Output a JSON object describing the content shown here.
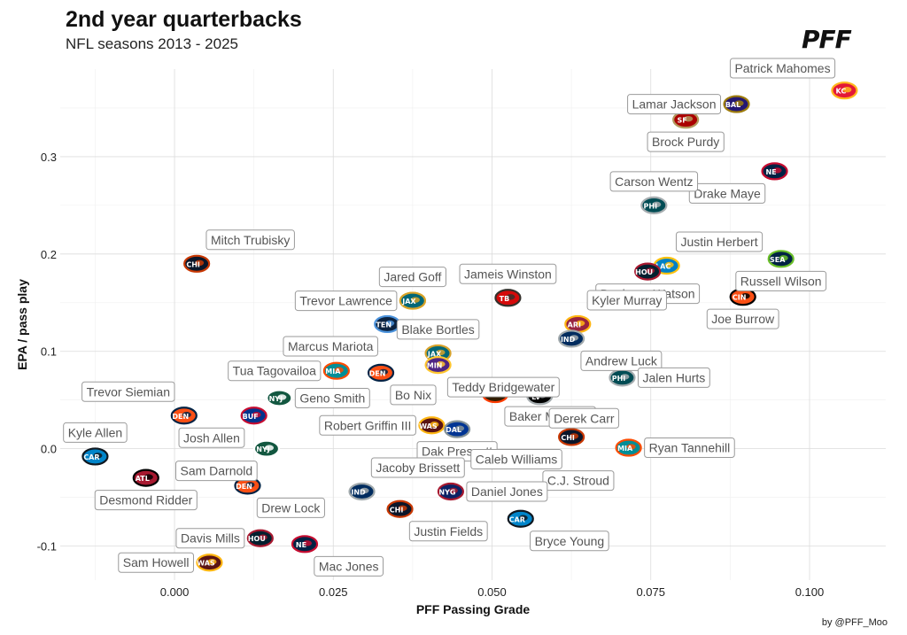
{
  "header": {
    "title": "2nd year quarterbacks",
    "subtitle": "NFL seasons 2013 - 2025",
    "logo_text": "PFF"
  },
  "footer": {
    "credit": "by @PFF_Moo"
  },
  "chart_data": {
    "type": "scatter",
    "title": "2nd year quarterbacks",
    "subtitle": "NFL seasons 2013 - 2025",
    "xlabel": "PFF Passing Grade",
    "ylabel": "EPA / pass play",
    "xlim": [
      -0.018,
      0.112
    ],
    "ylim": [
      -0.135,
      0.39
    ],
    "x_ticks": [
      0.0,
      0.025,
      0.05,
      0.075,
      0.1
    ],
    "x_tick_labels": [
      "0.000",
      "0.025",
      "0.050",
      "0.075",
      "0.100"
    ],
    "y_ticks": [
      -0.1,
      0.0,
      0.1,
      0.2,
      0.3
    ],
    "y_tick_labels": [
      "-0.1",
      "0.0",
      "0.1",
      "0.2",
      "0.3"
    ],
    "grid": true,
    "points": [
      {
        "label": "Patrick Mahomes",
        "x": 0.1055,
        "y": 0.368,
        "team": "KC",
        "color": "#E31837",
        "color2": "#FFB81C",
        "label_side": "left-up"
      },
      {
        "label": "Lamar Jackson",
        "x": 0.0885,
        "y": 0.354,
        "team": "BAL",
        "color": "#241773",
        "color2": "#9E7C0C",
        "label_side": "left"
      },
      {
        "label": "Brock Purdy",
        "x": 0.0805,
        "y": 0.338,
        "team": "SF",
        "color": "#AA0000",
        "color2": "#B3995D",
        "label_side": "below"
      },
      {
        "label": "Drake Maye",
        "x": 0.0945,
        "y": 0.285,
        "team": "NE",
        "color": "#002244",
        "color2": "#C60C30",
        "label_side": "below-left"
      },
      {
        "label": "Carson Wentz",
        "x": 0.0755,
        "y": 0.25,
        "team": "PHI",
        "color": "#004C54",
        "color2": "#A5ACAF",
        "label_side": "above"
      },
      {
        "label": "Russell Wilson",
        "x": 0.0955,
        "y": 0.195,
        "team": "SEA",
        "color": "#002244",
        "color2": "#69BE28",
        "label_side": "below"
      },
      {
        "label": "Justin Herbert",
        "x": 0.0775,
        "y": 0.188,
        "team": "LAC",
        "color": "#0080C6",
        "color2": "#FFC20E",
        "label_side": "above-right"
      },
      {
        "label": "Deshaun Watson",
        "x": 0.0745,
        "y": 0.182,
        "team": "HOU",
        "color": "#03202F",
        "color2": "#A71930",
        "label_side": "below"
      },
      {
        "label": "Joe Burrow",
        "x": 0.0895,
        "y": 0.156,
        "team": "CIN",
        "color": "#FB4F14",
        "color2": "#000000",
        "label_side": "below"
      },
      {
        "label": "Mitch Trubisky",
        "x": 0.0035,
        "y": 0.19,
        "team": "CHI",
        "color": "#0B162A",
        "color2": "#C83803",
        "label_side": "above-right"
      },
      {
        "label": "Jameis Winston",
        "x": 0.0525,
        "y": 0.155,
        "team": "TB",
        "color": "#D50A0A",
        "color2": "#34302B",
        "label_side": "above"
      },
      {
        "label": "Jared Goff",
        "x": 0.0375,
        "y": 0.152,
        "team": "LAR",
        "color": "#003594",
        "color2": "#FFD100",
        "label_side": "above"
      },
      {
        "label": "Trevor Lawrence",
        "x": 0.0375,
        "y": 0.152,
        "team": "JAX",
        "color": "#006778",
        "color2": "#D7A22A",
        "label_side": "left"
      },
      {
        "label": "Kyler Murray",
        "x": 0.0635,
        "y": 0.128,
        "team": "ARI",
        "color": "#97233F",
        "color2": "#FFB612",
        "label_side": "above-right"
      },
      {
        "label": "Marcus Mariota",
        "x": 0.0335,
        "y": 0.128,
        "team": "TEN",
        "color": "#0C2340",
        "color2": "#4B92DB",
        "label_side": "below-left"
      },
      {
        "label": "Andrew Luck",
        "x": 0.0625,
        "y": 0.113,
        "team": "IND",
        "color": "#002C5F",
        "color2": "#A2AAAD",
        "label_side": "below-right"
      },
      {
        "label": "Blake Bortles",
        "x": 0.0415,
        "y": 0.098,
        "team": "JAX",
        "color": "#006778",
        "color2": "#D7A22A",
        "label_side": "above"
      },
      {
        "label": "Teddy Bridgewater",
        "x": 0.0415,
        "y": 0.086,
        "team": "MIN",
        "color": "#4F2683",
        "color2": "#FFC62F",
        "label_side": "below-right"
      },
      {
        "label": "Tua Tagovailoa",
        "x": 0.0255,
        "y": 0.08,
        "team": "MIA",
        "color": "#008E97",
        "color2": "#FC4C02",
        "label_side": "left"
      },
      {
        "label": "Bo Nix",
        "x": 0.0325,
        "y": 0.078,
        "team": "DEN",
        "color": "#FB4F14",
        "color2": "#002244",
        "label_side": "below-right"
      },
      {
        "label": "Jalen Hurts",
        "x": 0.0705,
        "y": 0.073,
        "team": "PHI",
        "color": "#004C54",
        "color2": "#A5ACAF",
        "label_side": "right"
      },
      {
        "label": "Baker Mayfield",
        "x": 0.0505,
        "y": 0.056,
        "team": "CLE",
        "color": "#311D00",
        "color2": "#FF3C00",
        "label_side": "below-right"
      },
      {
        "label": "Derek Carr",
        "x": 0.0575,
        "y": 0.054,
        "team": "LV",
        "color": "#000000",
        "color2": "#A5ACAF",
        "label_side": "below-right"
      },
      {
        "label": "Geno Smith",
        "x": 0.0165,
        "y": 0.052,
        "team": "NYJ",
        "color": "#125740",
        "color2": "#FFFFFF",
        "label_side": "right"
      },
      {
        "label": "Trevor Siemian",
        "x": 0.0015,
        "y": 0.034,
        "team": "DEN",
        "color": "#FB4F14",
        "color2": "#002244",
        "label_side": "above-left"
      },
      {
        "label": "Josh Allen",
        "x": 0.0125,
        "y": 0.034,
        "team": "BUF",
        "color": "#00338D",
        "color2": "#C60C30",
        "label_side": "below-left"
      },
      {
        "label": "Robert Griffin III",
        "x": 0.0405,
        "y": 0.024,
        "team": "WAS",
        "color": "#5A1414",
        "color2": "#FFB612",
        "label_side": "left"
      },
      {
        "label": "Dak Prescott",
        "x": 0.0445,
        "y": 0.02,
        "team": "DAL",
        "color": "#003594",
        "color2": "#869397",
        "label_side": "below"
      },
      {
        "label": "Caleb Williams",
        "x": 0.0625,
        "y": 0.012,
        "team": "CHI",
        "color": "#0B162A",
        "color2": "#C83803",
        "label_side": "below-left"
      },
      {
        "label": "Ryan Tannehill",
        "x": 0.0715,
        "y": 0.001,
        "team": "MIA",
        "color": "#008E97",
        "color2": "#FC4C02",
        "label_side": "right"
      },
      {
        "label": "C.J. Stroud",
        "x": 0.0565,
        "y": -0.01,
        "team": "HOU",
        "color": "#03202F",
        "color2": "#A71930",
        "label_side": "below-right"
      },
      {
        "label": "Kyle Allen",
        "x": -0.0125,
        "y": -0.008,
        "team": "CAR",
        "color": "#0085CA",
        "color2": "#101820",
        "label_side": "above"
      },
      {
        "label": "Sam Darnold",
        "x": 0.0145,
        "y": 0.0,
        "team": "NYJ",
        "color": "#125740",
        "color2": "#FFFFFF",
        "label_side": "below-left"
      },
      {
        "label": "Desmond Ridder",
        "x": -0.0045,
        "y": -0.03,
        "team": "ATL",
        "color": "#A71930",
        "color2": "#000000",
        "label_side": "below"
      },
      {
        "label": "Drew Lock",
        "x": 0.0115,
        "y": -0.038,
        "team": "DEN",
        "color": "#FB4F14",
        "color2": "#002244",
        "label_side": "below-right"
      },
      {
        "label": "Jacoby Brissett",
        "x": 0.0295,
        "y": -0.044,
        "team": "IND",
        "color": "#002C5F",
        "color2": "#A2AAAD",
        "label_side": "above-right"
      },
      {
        "label": "Daniel Jones",
        "x": 0.0435,
        "y": -0.044,
        "team": "NYG",
        "color": "#0B2265",
        "color2": "#A71930",
        "label_side": "right"
      },
      {
        "label": "Justin Fields",
        "x": 0.0355,
        "y": -0.062,
        "team": "CHI",
        "color": "#0B162A",
        "color2": "#C83803",
        "label_side": "below-right"
      },
      {
        "label": "Bryce Young",
        "x": 0.0545,
        "y": -0.072,
        "team": "CAR",
        "color": "#0085CA",
        "color2": "#101820",
        "label_side": "below-right"
      },
      {
        "label": "Davis Mills",
        "x": 0.0135,
        "y": -0.092,
        "team": "HOU",
        "color": "#03202F",
        "color2": "#A71930",
        "label_side": "left"
      },
      {
        "label": "Mac Jones",
        "x": 0.0205,
        "y": -0.098,
        "team": "NE",
        "color": "#002244",
        "color2": "#C60C30",
        "label_side": "below-right"
      },
      {
        "label": "Sam Howell",
        "x": 0.0055,
        "y": -0.117,
        "team": "WAS",
        "color": "#5A1414",
        "color2": "#FFB612",
        "label_side": "left"
      }
    ]
  }
}
